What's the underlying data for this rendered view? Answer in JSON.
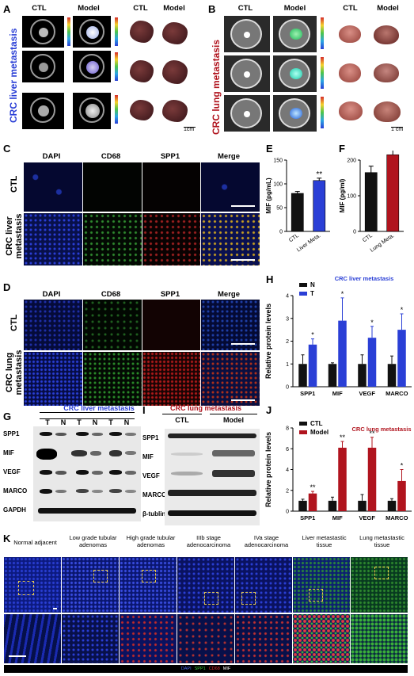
{
  "panels": {
    "A": "A",
    "B": "B",
    "C": "C",
    "D": "D",
    "E": "E",
    "F": "F",
    "G": "G",
    "H": "H",
    "I": "I",
    "J": "J",
    "K": "K"
  },
  "panelA": {
    "headers": [
      "CTL",
      "Model",
      "CTL",
      "Model"
    ],
    "side_label": "CRC liver metastasis",
    "scale": "1cm"
  },
  "panelB": {
    "headers": [
      "CTL",
      "Model",
      "CTL",
      "Model"
    ],
    "side_label": "CRC lung metastasis",
    "scale": "1 cm"
  },
  "panelC": {
    "headers": [
      "DAPI",
      "CD68",
      "SPP1",
      "Merge"
    ],
    "rows": [
      "CTL",
      "CRC liver metastasis"
    ]
  },
  "panelD": {
    "headers": [
      "DAPI",
      "CD68",
      "SPP1",
      "Merge"
    ],
    "rows": [
      "CTL",
      "CRC lung metastasis"
    ]
  },
  "panelG": {
    "title": "CRC liver metastasis",
    "lanes": [
      "T",
      "N",
      "T",
      "N",
      "T",
      "N"
    ],
    "proteins": [
      "SPP1",
      "MIF",
      "VEGF",
      "MARCO",
      "GAPDH"
    ]
  },
  "panelI": {
    "title": "CRC lung metastasis",
    "groups": [
      "CTL",
      "Model"
    ],
    "proteins": [
      "SPP1",
      "MIF",
      "VEGF",
      "MARCO",
      "β-tublin"
    ]
  },
  "panelK": {
    "stages": [
      "Normal adjacent",
      "Low grade tubular adenomas",
      "High grade tubular adenomas",
      "IIIb stage adenocarcinoma",
      "IVa stage adenocarcinoma",
      "Liver metastastic tissue",
      "Lung metastastic tissue"
    ],
    "legend": [
      "DAPI",
      "SPP1",
      "CD68",
      "MIF"
    ]
  },
  "chart_data": [
    {
      "id": "E",
      "type": "bar",
      "ylabel": "MIF (pg/mL)",
      "categories": [
        "CTL",
        "Liver Meta."
      ],
      "values": [
        80,
        107
      ],
      "errors": [
        4,
        5
      ],
      "ylim": [
        0,
        150
      ],
      "yticks": [
        0,
        50,
        100,
        150
      ],
      "colors": [
        "#111111",
        "#2a3fd6"
      ],
      "sig": [
        "",
        "**"
      ]
    },
    {
      "id": "F",
      "type": "bar",
      "ylabel": "MIF (pg/ml)",
      "categories": [
        "CTL",
        "Lung Meta."
      ],
      "values": [
        165,
        215
      ],
      "errors": [
        18,
        25
      ],
      "ylim": [
        0,
        200
      ],
      "yticks": [
        0,
        100,
        200
      ],
      "colors": [
        "#111111",
        "#b0141e"
      ],
      "sig": [
        "",
        "*"
      ]
    },
    {
      "id": "H",
      "type": "bar",
      "title": "CRC liver metastasis",
      "ylabel": "Relative protein levels",
      "categories": [
        "SPP1",
        "MIF",
        "VEGF",
        "MARCO"
      ],
      "series": [
        {
          "name": "N",
          "values": [
            1,
            1,
            1,
            1
          ],
          "errors": [
            0.4,
            0.05,
            0.4,
            0.35
          ]
        },
        {
          "name": "T",
          "values": [
            1.85,
            2.9,
            2.15,
            2.5
          ],
          "errors": [
            0.25,
            1.0,
            0.5,
            0.7
          ]
        }
      ],
      "ylim": [
        0,
        4
      ],
      "yticks": [
        0,
        1,
        2,
        3,
        4
      ],
      "colors": [
        "#111111",
        "#2a3fd6"
      ],
      "sig": [
        "*",
        "*",
        "*",
        "*"
      ]
    },
    {
      "id": "J",
      "type": "bar",
      "title": "CRC lung metastasis",
      "ylabel": "Relative protein levels",
      "categories": [
        "SPP1",
        "MIF",
        "VEGF",
        "MARCO"
      ],
      "series": [
        {
          "name": "CTL",
          "values": [
            1,
            1,
            1,
            1
          ],
          "errors": [
            0.15,
            0.35,
            0.6,
            0.2
          ]
        },
        {
          "name": "Model",
          "values": [
            1.7,
            6.1,
            6.1,
            2.9
          ],
          "errors": [
            0.2,
            0.6,
            1.0,
            1.1
          ]
        }
      ],
      "ylim": [
        0,
        8
      ],
      "yticks": [
        0,
        2,
        4,
        6,
        8
      ],
      "colors": [
        "#111111",
        "#b0141e"
      ],
      "sig": [
        "**",
        "**",
        "**",
        "*"
      ]
    }
  ]
}
